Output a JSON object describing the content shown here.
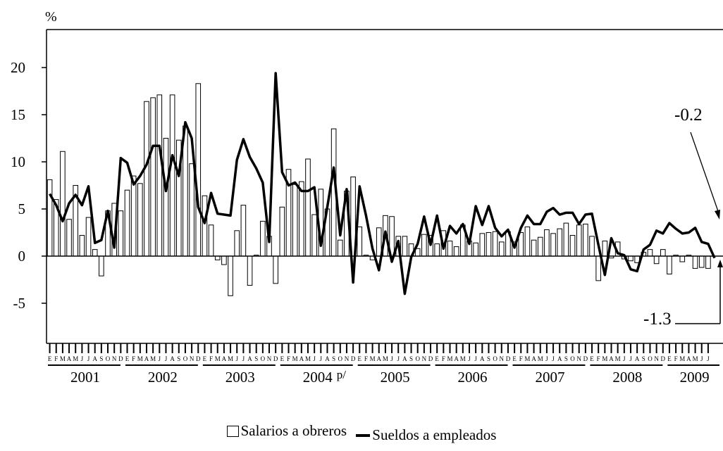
{
  "chart_data": {
    "type": "bar+line",
    "yunit": "%",
    "ylim": [
      -9,
      24
    ],
    "yticks": [
      -5,
      0,
      5,
      10,
      15,
      20
    ],
    "month_labels": [
      "E",
      "F",
      "M",
      "A",
      "M",
      "J",
      "J",
      "A",
      "S",
      "O",
      "N",
      "D"
    ],
    "years": [
      "2001",
      "2002",
      "2003",
      "2004",
      "2005",
      "2006",
      "2007",
      "2008",
      "2009"
    ],
    "year_2004_mark": "p/",
    "series": [
      {
        "name": "Salarios a obreros",
        "kind": "bar",
        "values": [
          8.1,
          6.0,
          11.1,
          3.9,
          7.5,
          2.2,
          4.1,
          0.7,
          -2.1,
          4.8,
          5.6,
          4.8,
          7.0,
          8.5,
          7.7,
          16.4,
          16.8,
          17.1,
          12.5,
          17.1,
          12.3,
          13.8,
          9.8,
          18.3,
          6.4,
          3.3,
          -0.4,
          -0.9,
          -4.2,
          2.7,
          5.4,
          -3.1,
          0.1,
          3.7,
          2.1,
          -2.9,
          5.2,
          9.2,
          7.6,
          7.9,
          10.3,
          4.4,
          7.1,
          5.0,
          13.5,
          1.7,
          6.9,
          8.4,
          3.1,
          0.1,
          -0.4,
          3.0,
          4.3,
          4.2,
          2.1,
          2.1,
          1.3,
          0.8,
          2.3,
          2.2,
          1.3,
          2.7,
          1.6,
          1.0,
          3.3,
          1.6,
          1.4,
          2.4,
          2.5,
          2.6,
          1.5,
          2.6,
          1.5,
          2.5,
          3.1,
          1.7,
          2.0,
          2.8,
          2.4,
          2.9,
          3.5,
          2.2,
          3.3,
          3.4,
          2.1,
          -2.6,
          1.6,
          -0.2,
          1.5,
          -0.3,
          -0.5,
          -0.7,
          0.4,
          0.7,
          -0.8,
          0.7,
          -1.9,
          0.1,
          -0.6,
          0.1,
          -1.3,
          -1.2,
          -1.3
        ]
      },
      {
        "name": "Sueldos a empleados",
        "kind": "line",
        "values": [
          6.6,
          5.4,
          3.7,
          5.6,
          6.5,
          5.4,
          7.4,
          1.4,
          1.7,
          4.8,
          0.9,
          10.4,
          9.9,
          7.6,
          8.5,
          9.7,
          11.7,
          11.7,
          6.9,
          10.7,
          8.5,
          14.2,
          12.5,
          5.2,
          3.5,
          6.7,
          4.5,
          4.4,
          4.3,
          10.2,
          12.4,
          10.5,
          9.3,
          7.8,
          1.5,
          19.4,
          8.9,
          7.5,
          7.8,
          6.9,
          6.9,
          7.3,
          1.1,
          5.2,
          9.4,
          2.2,
          7.1,
          -2.8,
          7.4,
          4.3,
          0.8,
          -1.5,
          2.6,
          -0.6,
          1.6,
          -4.0,
          -0.1,
          1.3,
          4.2,
          1.2,
          4.3,
          0.8,
          3.2,
          2.4,
          3.4,
          1.3,
          5.3,
          3.3,
          5.3,
          3.0,
          2.1,
          2.8,
          0.9,
          3.0,
          4.3,
          3.4,
          3.4,
          4.7,
          5.1,
          4.4,
          4.6,
          4.6,
          3.4,
          4.4,
          4.5,
          1.2,
          -2.0,
          1.9,
          0.3,
          0.1,
          -1.4,
          -1.6,
          0.7,
          1.2,
          2.7,
          2.4,
          3.5,
          2.9,
          2.4,
          2.5,
          3.0,
          1.5,
          1.3,
          -0.2
        ]
      }
    ],
    "annotations": [
      {
        "text": "-0.2",
        "series": "Sueldos a empleados",
        "index": 103
      },
      {
        "text": "-1.3",
        "series": "Salarios a obreros",
        "index": 103
      }
    ],
    "grid": false,
    "legend_position": "bottom-center"
  }
}
